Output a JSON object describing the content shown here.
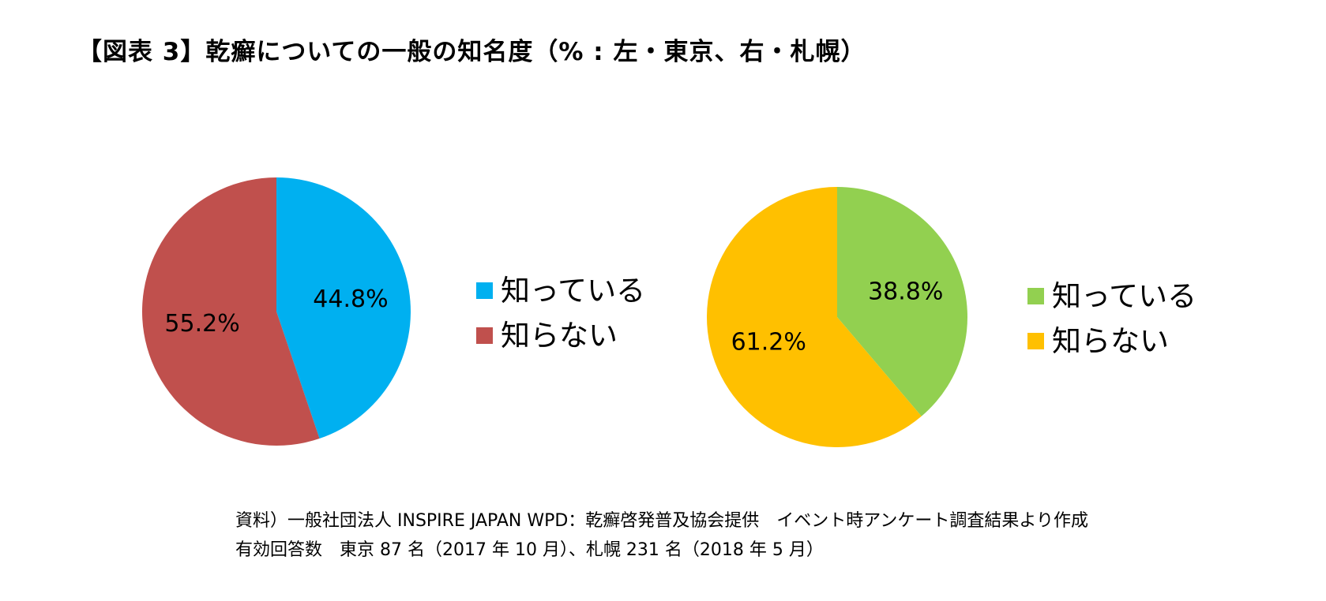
{
  "title": "【図表 3】乾癬についての一般の知名度（% : 左・東京、右・札幌）",
  "chart_data": [
    {
      "type": "pie",
      "categories": [
        "知っている",
        "知らない"
      ],
      "values": [
        44.8,
        55.2
      ],
      "value_labels": [
        "44.8%",
        "55.2%"
      ],
      "colors": [
        "#00B0F0",
        "#C0504D"
      ],
      "legend_position": "right"
    },
    {
      "type": "pie",
      "categories": [
        "知っている",
        "知らない"
      ],
      "values": [
        38.8,
        61.2
      ],
      "value_labels": [
        "38.8%",
        "61.2%"
      ],
      "colors": [
        "#92D050",
        "#FFC000"
      ],
      "legend_position": "right"
    }
  ],
  "notes": [
    "資料）一般社団法人 INSPIRE JAPAN WPD：乾癬啓発普及協会提供　イベント時アンケート調査結果より作成",
    "有効回答数　東京 87 名（2017 年 10 月）、札幌 231 名（2018 年 5 月）"
  ]
}
